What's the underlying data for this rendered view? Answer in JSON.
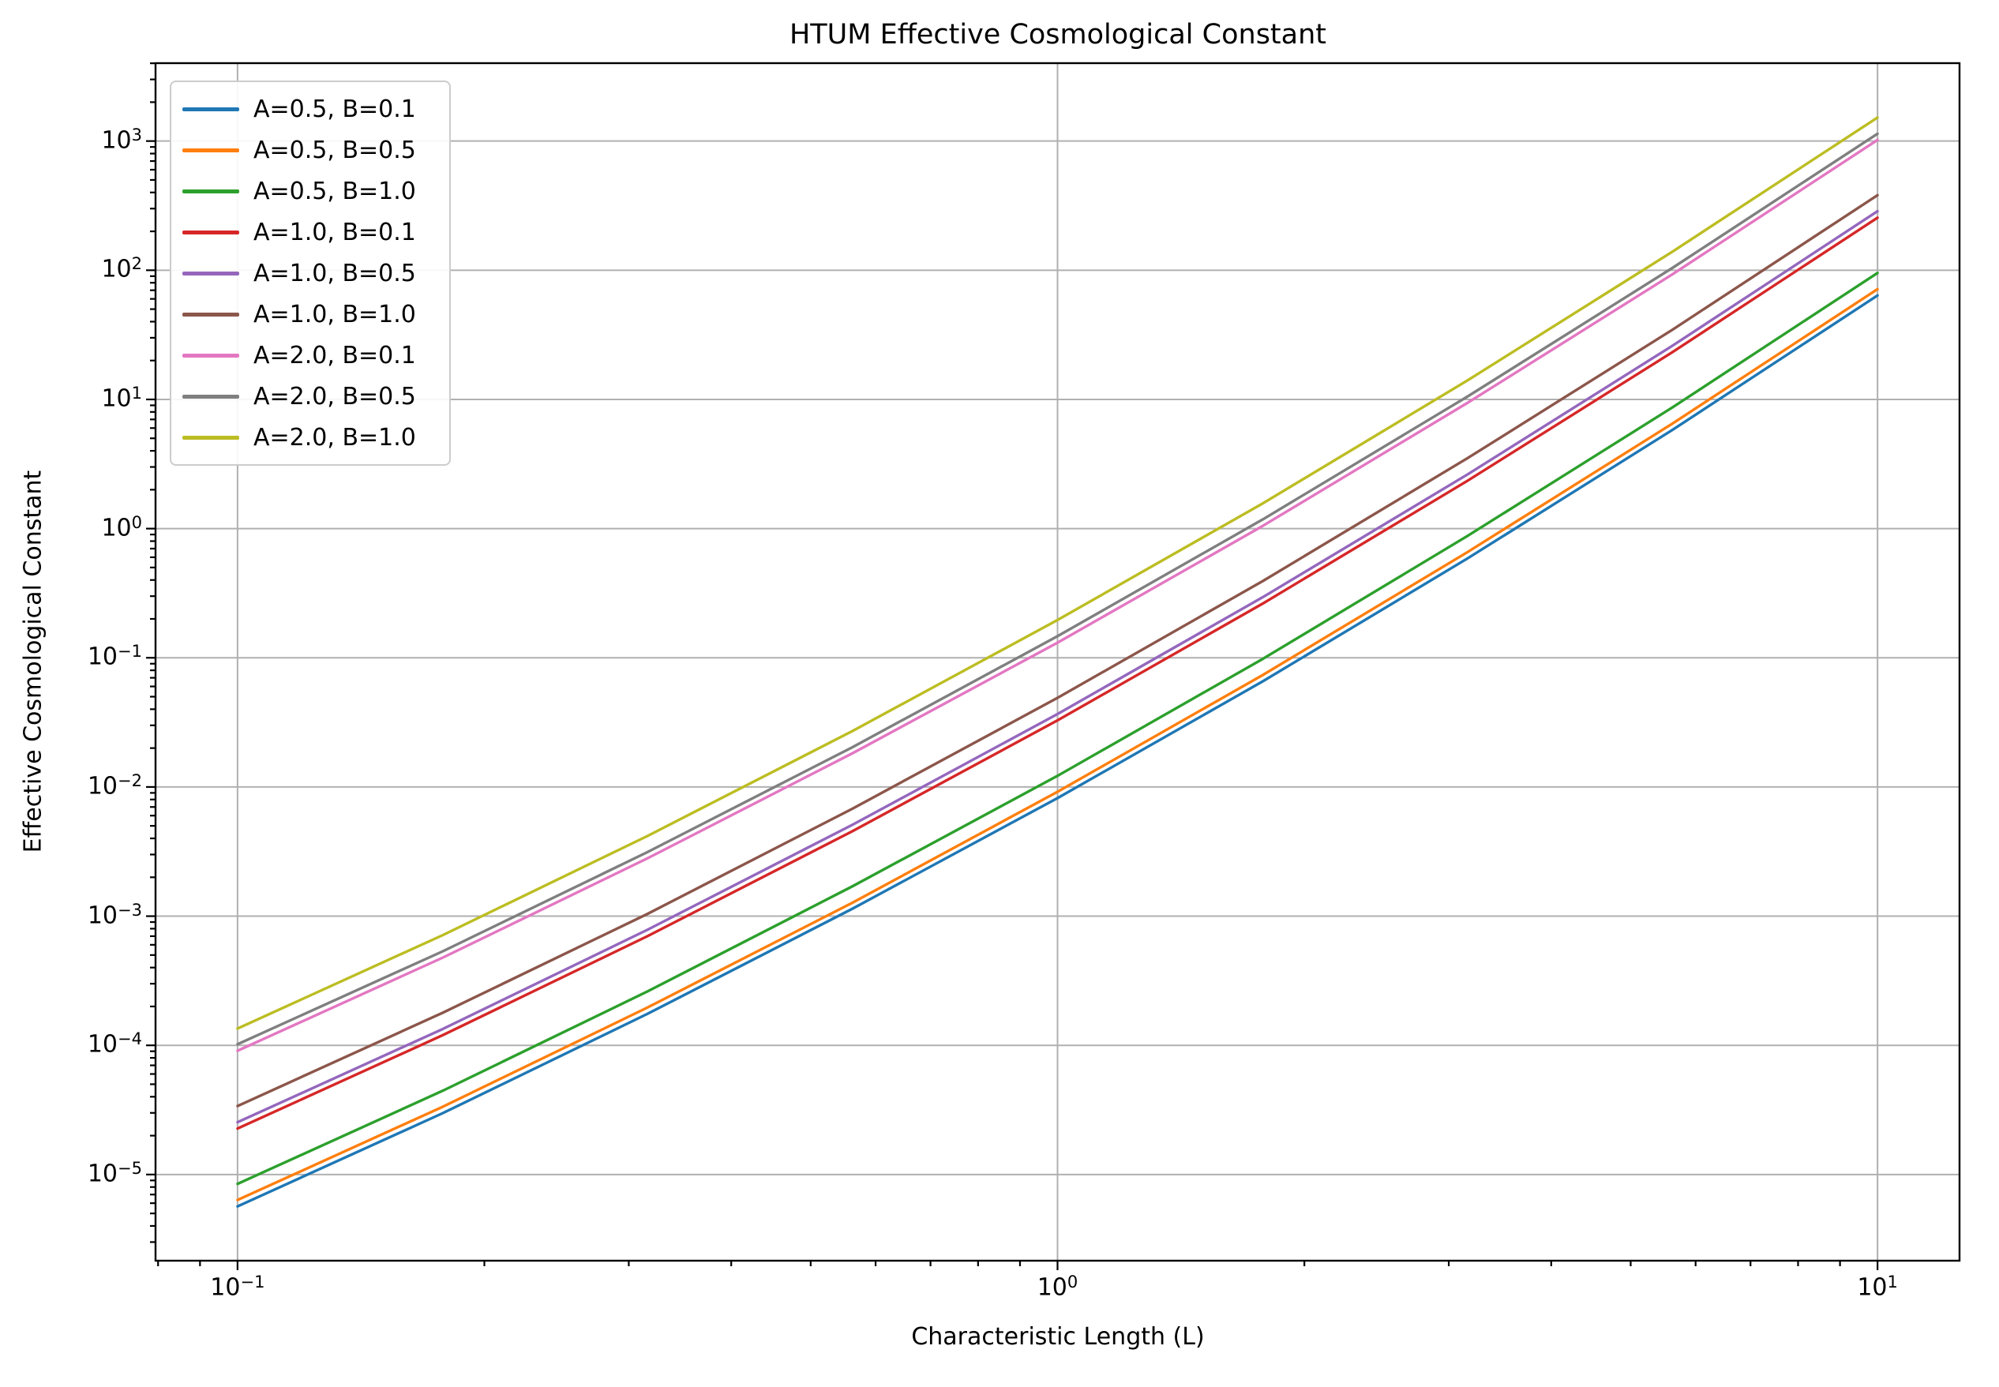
{
  "figure": {
    "background": "#ffffff",
    "spine_color": "#000000"
  },
  "chart_data": {
    "type": "line",
    "title": "HTUM Effective Cosmological Constant",
    "xlabel": "Characteristic Length (L)",
    "ylabel": "Effective Cosmological Constant",
    "x_scale": "log",
    "y_scale": "log",
    "xlim_log10": [
      -1.1,
      1.1
    ],
    "ylim_log10": [
      -5.667,
      3.603
    ],
    "x_tick_exponents": [
      -1,
      0,
      1
    ],
    "y_tick_exponents": [
      3,
      2,
      1,
      0,
      -1,
      -2,
      -3,
      -4,
      -5
    ],
    "grid": true,
    "grid_color": "#b0b0b0",
    "legend_position": "upper left",
    "x": [
      0.1,
      0.178,
      0.316,
      0.562,
      1.0,
      1.78,
      3.16,
      5.62,
      10.0
    ],
    "series": [
      {
        "name": "A=0.5, B=0.1",
        "color": "#1f77b4",
        "values": [
          5.67e-06,
          2.99e-05,
          0.000175,
          0.00114,
          0.0082,
          0.0658,
          0.586,
          5.8,
          63.8
        ]
      },
      {
        "name": "A=0.5, B=0.5",
        "color": "#ff7f0e",
        "values": [
          6.35e-06,
          3.35e-05,
          0.000196,
          0.00127,
          0.00918,
          0.0737,
          0.656,
          6.49,
          71.4
        ]
      },
      {
        "name": "A=0.5, B=1.0",
        "color": "#2ca02c",
        "values": [
          8.46e-06,
          4.46e-05,
          0.000261,
          0.0017,
          0.0122,
          0.0982,
          0.875,
          8.66,
          95.2
        ]
      },
      {
        "name": "A=1.0, B=0.1",
        "color": "#d62728",
        "values": [
          2.27e-05,
          0.00012,
          0.000699,
          0.00454,
          0.0328,
          0.263,
          2.34,
          23.2,
          255
        ]
      },
      {
        "name": "A=1.0, B=0.5",
        "color": "#9467bd",
        "values": [
          2.54e-05,
          0.000134,
          0.000783,
          0.00509,
          0.0367,
          0.295,
          2.62,
          26.0,
          286
        ]
      },
      {
        "name": "A=1.0, B=1.0",
        "color": "#8c564b",
        "values": [
          3.39e-05,
          0.000179,
          0.00104,
          0.00678,
          0.049,
          0.393,
          3.5,
          34.6,
          381
        ]
      },
      {
        "name": "A=2.0, B=0.1",
        "color": "#e377c2",
        "values": [
          9.07e-05,
          0.000478,
          0.0028,
          0.0182,
          0.131,
          1.05,
          9.38,
          92.8,
          1020
        ]
      },
      {
        "name": "A=2.0, B=0.5",
        "color": "#7f7f7f",
        "values": [
          0.000102,
          0.000535,
          0.00313,
          0.0203,
          0.147,
          1.18,
          10.5,
          104,
          1140
        ]
      },
      {
        "name": "A=2.0, B=1.0",
        "color": "#bcbd22",
        "values": [
          0.000135,
          0.000714,
          0.00417,
          0.0271,
          0.196,
          1.57,
          14.0,
          139,
          1520
        ]
      }
    ]
  }
}
